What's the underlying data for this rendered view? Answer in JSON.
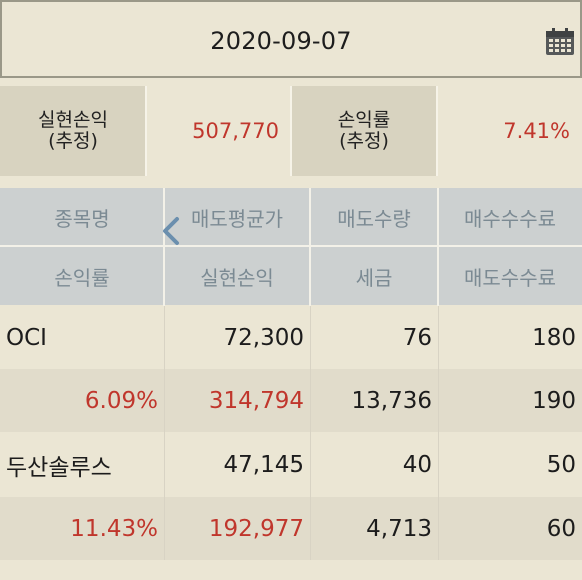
{
  "date": {
    "value": "2020-09-07",
    "icon": "calendar-icon"
  },
  "summary": {
    "realized_label_line1": "실현손익",
    "realized_label_line2": "(추정)",
    "realized_value": "507,770",
    "rate_label_line1": "손익률",
    "rate_label_line2": "(추정)",
    "rate_value": "7.41%"
  },
  "table": {
    "header_row1": [
      "종목명",
      "매도평균가",
      "매도수량",
      "매수수수료"
    ],
    "header_row2": [
      "손익률",
      "실현손익",
      "세금",
      "매도수수료"
    ],
    "stocks": [
      {
        "name": "OCI",
        "sell_avg_price": "72,300",
        "sell_qty": "76",
        "buy_fee": "180",
        "rate": "6.09%",
        "realized": "314,794",
        "tax": "13,736",
        "sell_fee": "190"
      },
      {
        "name": "두산솔루스",
        "sell_avg_price": "47,145",
        "sell_qty": "40",
        "buy_fee": "50",
        "rate": "11.43%",
        "realized": "192,977",
        "tax": "4,713",
        "sell_fee": "60"
      }
    ]
  },
  "colors": {
    "accent_red": "#c0362c",
    "header_text": "#7b8a93",
    "background": "#ebe6d4"
  }
}
